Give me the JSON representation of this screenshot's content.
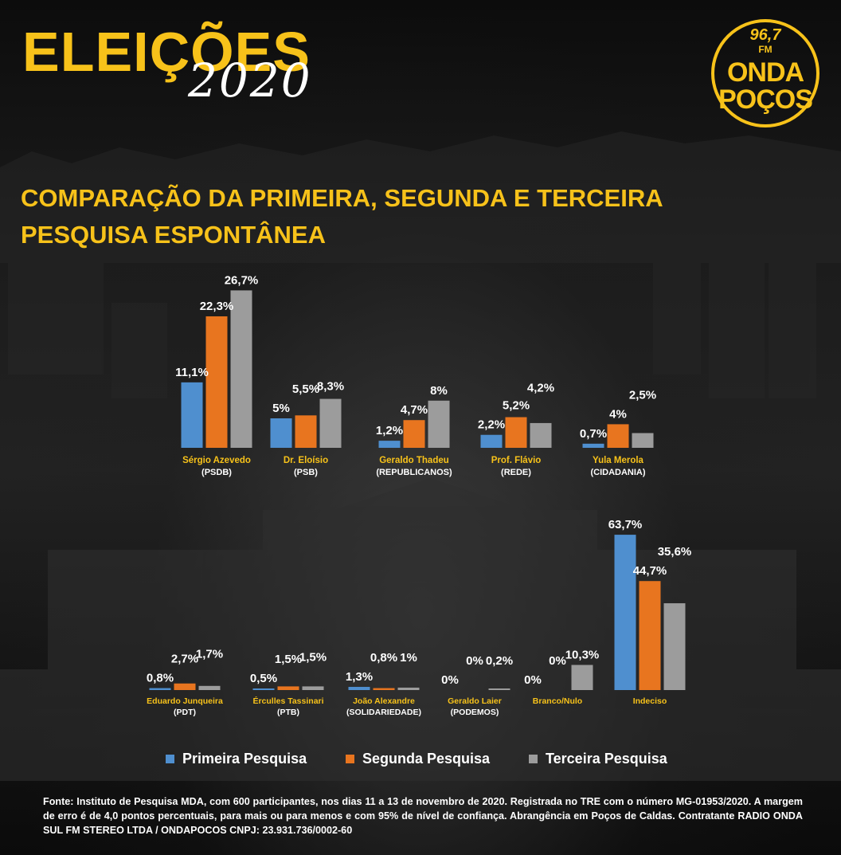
{
  "header": {
    "title_main": "ELEIÇÕES",
    "title_year": "2020"
  },
  "logo": {
    "frequency": "96,7",
    "band": "FM",
    "name_line1": "ONDA",
    "name_line2": "POÇOS"
  },
  "chart_title": {
    "line1": "COMPARAÇÃO DA PRIMEIRA, SEGUNDA E TERCEIRA",
    "line2": "PESQUISA ESPONTÂNEA"
  },
  "colors": {
    "accent": "#f7c21a",
    "primeira": "#4f8fcf",
    "segunda": "#e8751f",
    "terceira": "#9c9c9c",
    "text": "#ffffff"
  },
  "legend": [
    {
      "label": "Primeira Pesquisa",
      "color": "#4f8fcf"
    },
    {
      "label": "Segunda Pesquisa",
      "color": "#e8751f"
    },
    {
      "label": "Terceira Pesquisa",
      "color": "#9c9c9c"
    }
  ],
  "chart_data": {
    "type": "bar",
    "series_names": [
      "Primeira Pesquisa",
      "Segunda Pesquisa",
      "Terceira Pesquisa"
    ],
    "unit": "%",
    "panels": [
      {
        "candidates": [
          {
            "name": "Sérgio Azevedo",
            "party": "(PSDB)",
            "values": [
              11.1,
              22.3,
              26.7
            ],
            "labels": [
              "11,1%",
              "22,3%",
              "26,7%"
            ]
          },
          {
            "name": "Dr. Eloísio",
            "party": "(PSB)",
            "values": [
              5,
              5.5,
              8.3
            ],
            "labels": [
              "5%",
              "5,5%",
              "8,3%"
            ]
          },
          {
            "name": "Geraldo Thadeu",
            "party": "(REPUBLICANOS)",
            "values": [
              1.2,
              4.7,
              8
            ],
            "labels": [
              "1,2%",
              "4,7%",
              "8%"
            ]
          },
          {
            "name": "Prof. Flávio",
            "party": "(REDE)",
            "values": [
              2.2,
              5.2,
              4.2
            ],
            "labels": [
              "2,2%",
              "5,2%",
              "4,2%"
            ]
          },
          {
            "name": "Yula Merola",
            "party": "(CIDADANIA)",
            "values": [
              0.7,
              4,
              2.5
            ],
            "labels": [
              "0,7%",
              "4%",
              "2,5%"
            ]
          }
        ]
      },
      {
        "candidates": [
          {
            "name": "Eduardo Junqueira",
            "party": "(PDT)",
            "values": [
              0.8,
              2.7,
              1.7
            ],
            "labels": [
              "0,8%",
              "2,7%",
              "1,7%"
            ]
          },
          {
            "name": "Érculles Tassinari",
            "party": "(PTB)",
            "values": [
              0.5,
              1.5,
              1.5
            ],
            "labels": [
              "0,5%",
              "1,5%",
              "1,5%"
            ]
          },
          {
            "name": "João Alexandre",
            "party": "(SOLIDARIEDADE)",
            "values": [
              1.3,
              0.8,
              1
            ],
            "labels": [
              "1,3%",
              "0,8%",
              "1%"
            ]
          },
          {
            "name": "Geraldo Laier",
            "party": "(PODEMOS)",
            "values": [
              0,
              0,
              0.2
            ],
            "labels": [
              "0%",
              "0%",
              "0,2%"
            ]
          },
          {
            "name": "Branco/Nulo",
            "party": "",
            "values": [
              0,
              0,
              10.3
            ],
            "labels": [
              "0%",
              "0%",
              "10,3%"
            ]
          },
          {
            "name": "Indeciso",
            "party": "",
            "values": [
              63.7,
              44.7,
              35.6
            ],
            "labels": [
              "63,7%",
              "44,7%",
              "35,6%"
            ]
          }
        ]
      }
    ]
  },
  "footer": {
    "source": "Fonte: Instituto de Pesquisa MDA, com 600 participantes, nos dias 11 a 13 de novembro de 2020. Registrada no TRE com o número MG-01953/2020. A margem de erro é de 4,0 pontos percentuais, para mais ou para menos e com 95% de nível de confiança. Abrangência em Poços de Caldas. Contratante RADIO ONDA SUL FM STEREO LTDA / ONDAPOCOS CNPJ: 23.931.736/0002-60"
  }
}
